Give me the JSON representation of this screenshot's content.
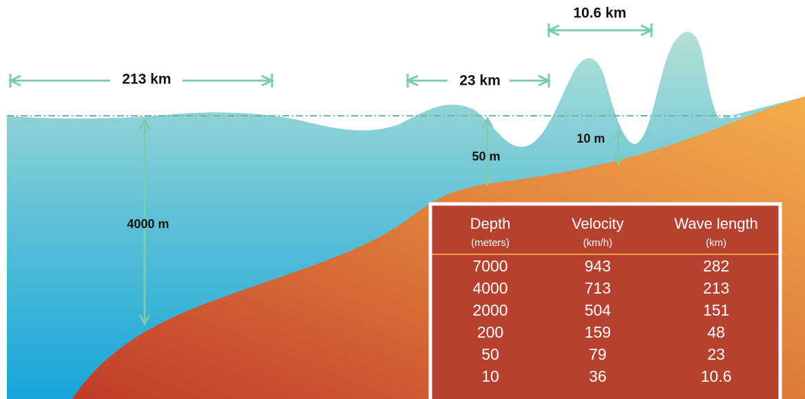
{
  "labels": {
    "wavelength_deep": "213 km",
    "wavelength_mid": "23 km",
    "wavelength_shallow": "10.6 km",
    "depth_deep": "4000 m",
    "depth_mid": "50 m",
    "depth_shallow": "10 m"
  },
  "table": {
    "headers": [
      [
        "Depth",
        "(meters)"
      ],
      [
        "Velocity",
        "(km/h)"
      ],
      [
        "Wave length",
        "(km)"
      ]
    ],
    "rows": [
      [
        "7000",
        "943",
        "282"
      ],
      [
        "4000",
        "713",
        "213"
      ],
      [
        "2000",
        "504",
        "151"
      ],
      [
        "200",
        "159",
        "48"
      ],
      [
        "50",
        "79",
        "23"
      ],
      [
        "10",
        "36",
        "10.6"
      ]
    ]
  }
}
